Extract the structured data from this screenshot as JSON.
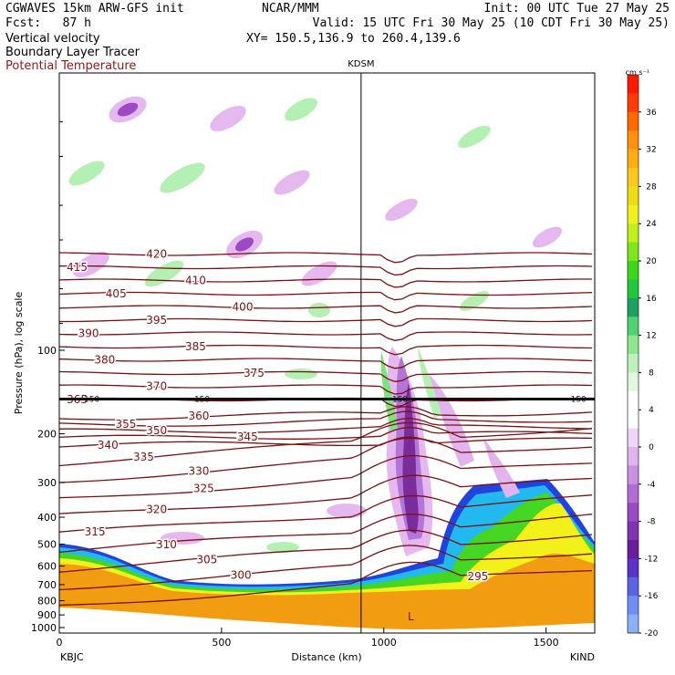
{
  "header": {
    "model_title": "CGWAVES 15km ARW-GFS init",
    "forecast_hour": "Fcst:   87 h",
    "fields": [
      "Vertical velocity",
      "Boundary Layer Tracer",
      "Potential Temperature"
    ],
    "producer": "NCAR/MMM",
    "init_time": "Init: 00 UTC Tue 27 May 25",
    "valid_time": "Valid: 15 UTC Fri 30 May 25 (10 CDT Fri 30 May 25)",
    "cross_section": "XY= 150.5,136.9 to 260.4,139.6"
  },
  "colors": {
    "theta": "#7a1010",
    "tracer_blue": "#2244dd",
    "tracer_cyan": "#22b8f0",
    "tracer_green": "#44d622",
    "tracer_yellow": "#f2f21a",
    "tracer_orange": "#f29c12",
    "w_down_light": "#e6b8f0",
    "w_down_mid": "#b475d8",
    "w_down_dark": "#7a2c9a",
    "w_up_light": "#b4f0b4",
    "w_up_mid": "#7ee27e"
  },
  "chart_data": {
    "type": "heatmap",
    "title": "",
    "xlabel": "Distance (km)",
    "ylabel": "Pressure (hPa), log scale",
    "x_range": [
      0,
      1650
    ],
    "y_range": [
      1000,
      10
    ],
    "y_scale": "log",
    "x_ticks": [
      0,
      500,
      1000,
      1500
    ],
    "y_ticks": [
      100,
      200,
      300,
      400,
      500,
      600,
      700,
      800,
      900,
      1000
    ],
    "x_end_labels": {
      "left": "KBJC",
      "right": "KIND"
    },
    "station_marker": {
      "label": "KDSM",
      "x": 930
    },
    "tropopause_level": {
      "label": "150",
      "pressure": 150
    },
    "colorbar": {
      "unit": "cm s⁻¹",
      "tick_labels": [
        "36",
        "32",
        "28",
        "24",
        "20",
        "16",
        "12",
        "8",
        "4",
        "0",
        "-4",
        "-8",
        "-12",
        "-16",
        "-20"
      ],
      "colors": [
        "#ff1a00",
        "#ff3c0a",
        "#ff6a00",
        "#ff8f10",
        "#ffad14",
        "#ffc81e",
        "#f0dc14",
        "#f0f01e",
        "#bff01e",
        "#7ee61e",
        "#3cd61e",
        "#22c83c",
        "#1ea064",
        "#50d270",
        "#8ee68e",
        "#bef0be",
        "#dff8df",
        "#ffffff",
        "#ffffff",
        "#efd6f6",
        "#e1b4ee",
        "#cb90e2",
        "#b26cd4",
        "#9a4ac2",
        "#8232b0",
        "#6a1e9a",
        "#5a32c8",
        "#5a64e2",
        "#6e8ef0",
        "#8cb0f6"
      ]
    },
    "isentropes": [
      {
        "theta": 295,
        "label_x": 1290
      },
      {
        "theta": 300,
        "label_x": 560
      },
      {
        "theta": 305,
        "label_x": 455
      },
      {
        "theta": 310,
        "label_x": 330
      },
      {
        "theta": 315,
        "label_x": 110
      },
      {
        "theta": 320,
        "label_x": 300
      },
      {
        "theta": 325,
        "label_x": 445
      },
      {
        "theta": 330,
        "label_x": 430
      },
      {
        "theta": 335,
        "label_x": 260
      },
      {
        "theta": 340,
        "label_x": 150
      },
      {
        "theta": 345,
        "label_x": 580
      },
      {
        "theta": 350,
        "label_x": 300
      },
      {
        "theta": 355,
        "label_x": 205
      },
      {
        "theta": 360,
        "label_x": 430
      },
      {
        "theta": 365,
        "label_x": 55
      },
      {
        "theta": 370,
        "label_x": 300
      },
      {
        "theta": 375,
        "label_x": 600
      },
      {
        "theta": 380,
        "label_x": 140
      },
      {
        "theta": 385,
        "label_x": 420
      },
      {
        "theta": 390,
        "label_x": 90
      },
      {
        "theta": 395,
        "label_x": 300
      },
      {
        "theta": 400,
        "label_x": 565
      },
      {
        "theta": 405,
        "label_x": 175
      },
      {
        "theta": 410,
        "label_x": 420
      },
      {
        "theta": 415,
        "label_x": 55
      },
      {
        "theta": 420,
        "label_x": 300
      }
    ]
  }
}
